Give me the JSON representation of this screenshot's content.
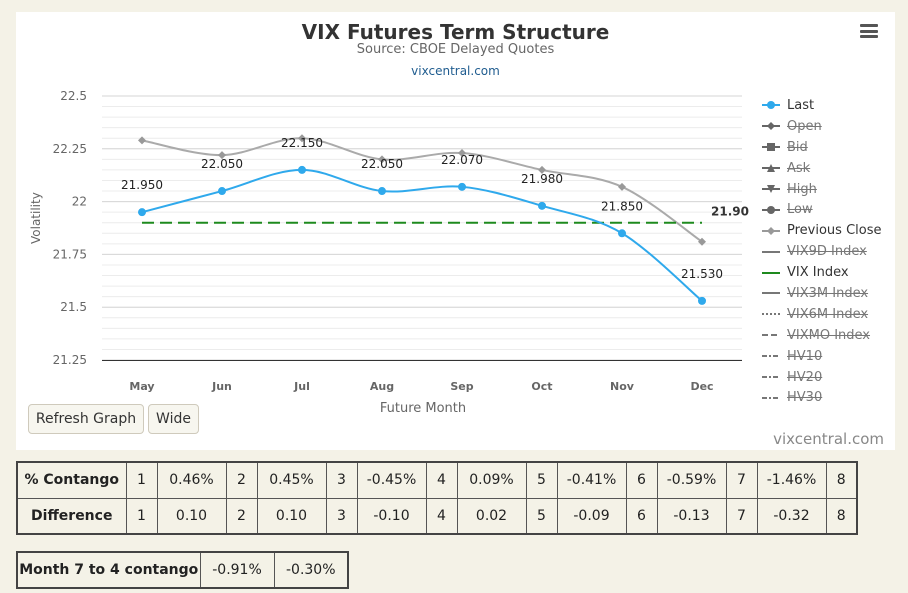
{
  "chart": {
    "title": "VIX Futures Term Structure",
    "subtitle": "Source: CBOE Delayed Quotes",
    "credit_top": "vixcentral.com",
    "credit_bottom": "vixcentral.com",
    "menu_icon": "hamburger-menu-icon"
  },
  "buttons": {
    "refresh": "Refresh Graph",
    "wide": "Wide"
  },
  "chart_data": {
    "type": "line",
    "categories": [
      "May",
      "Jun",
      "Jul",
      "Aug",
      "Sep",
      "Oct",
      "Nov",
      "Dec"
    ],
    "xlabel": "Future Month",
    "ylabel": "Volatility",
    "ylim": [
      21.25,
      22.5
    ],
    "yticks": [
      "22.5",
      "22.25",
      "22",
      "21.75",
      "21.5",
      "21.25"
    ],
    "grid": true,
    "legend_position": "right",
    "series": [
      {
        "name": "Last",
        "color": "#2fa9ec",
        "values": [
          21.95,
          22.05,
          22.15,
          22.05,
          22.07,
          21.98,
          21.85,
          21.53
        ],
        "labels": [
          "21.950",
          "22.050",
          "22.150",
          "22.050",
          "22.070",
          "21.980",
          "21.850",
          "21.530"
        ]
      },
      {
        "name": "Previous Close",
        "color": "#aaaaaa",
        "values": [
          22.29,
          22.22,
          22.3,
          22.2,
          22.23,
          22.15,
          22.07,
          21.81
        ]
      },
      {
        "name": "VIX Index",
        "color": "#1e8a1e",
        "value": 21.9,
        "label": "21.90"
      }
    ]
  },
  "legend": [
    {
      "label": "Last",
      "symbol": "circle",
      "hidden": false,
      "color": "#2fa9ec"
    },
    {
      "label": "Open",
      "symbol": "diamond",
      "hidden": true,
      "color": "#666666"
    },
    {
      "label": "Bid",
      "symbol": "square",
      "hidden": true,
      "color": "#666666"
    },
    {
      "label": "Ask",
      "symbol": "triangle",
      "hidden": true,
      "color": "#666666"
    },
    {
      "label": "High",
      "symbol": "triangle-down",
      "hidden": true,
      "color": "#666666"
    },
    {
      "label": "Low",
      "symbol": "circle",
      "hidden": true,
      "color": "#666666"
    },
    {
      "label": "Previous Close",
      "symbol": "diamond",
      "hidden": false,
      "color": "#999999"
    },
    {
      "label": "VIX9D Index",
      "symbol": "line",
      "hidden": true,
      "color": "#777777"
    },
    {
      "label": "VIX Index",
      "symbol": "line",
      "hidden": false,
      "color": "#1e8a1e"
    },
    {
      "label": "VIX3M Index",
      "symbol": "line",
      "hidden": true,
      "color": "#777777"
    },
    {
      "label": "VIX6M Index",
      "symbol": "dotted",
      "hidden": true,
      "color": "#777777"
    },
    {
      "label": "VIXMO Index",
      "symbol": "dashed",
      "hidden": true,
      "color": "#777777"
    },
    {
      "label": "HV10",
      "symbol": "dashdot",
      "hidden": true,
      "color": "#777777"
    },
    {
      "label": "HV20",
      "symbol": "dashdot",
      "hidden": true,
      "color": "#777777"
    },
    {
      "label": "HV30",
      "symbol": "dashdot",
      "hidden": true,
      "color": "#777777"
    }
  ],
  "contango_table": {
    "rows": [
      {
        "label": "% Contango",
        "cells": [
          "1",
          "0.46%",
          "2",
          "0.45%",
          "3",
          "-0.45%",
          "4",
          "0.09%",
          "5",
          "-0.41%",
          "6",
          "-0.59%",
          "7",
          "-1.46%",
          "8"
        ]
      },
      {
        "label": "Difference",
        "cells": [
          "1",
          "0.10",
          "2",
          "0.10",
          "3",
          "-0.10",
          "4",
          "0.02",
          "5",
          "-0.09",
          "6",
          "-0.13",
          "7",
          "-0.32",
          "8"
        ]
      }
    ]
  },
  "month_table": {
    "label": "Month 7 to 4 contango",
    "values": [
      "-0.91%",
      "-0.30%"
    ]
  }
}
